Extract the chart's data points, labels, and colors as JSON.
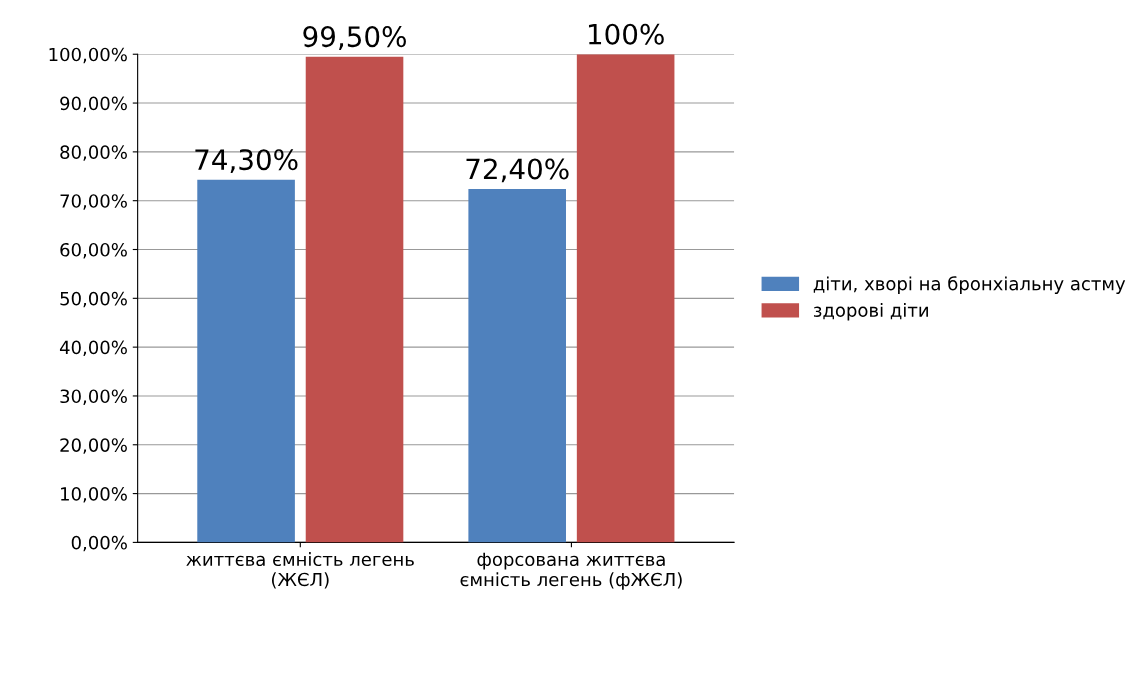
{
  "chart_data": {
    "type": "bar",
    "categories": [
      "життєва ємність легень (ЖЄЛ)",
      "форсована життєва ємність легень (фЖЄЛ)"
    ],
    "series": [
      {
        "name": "діти, хворі на бронхіальну астму",
        "color": "#4f81bd",
        "values": [
          74.3,
          72.4
        ],
        "value_labels": [
          "74,30%",
          "72,40%"
        ]
      },
      {
        "name": "здорові діти",
        "color": "#c0504d",
        "values": [
          99.5,
          100
        ],
        "value_labels": [
          "99,50%",
          "100%"
        ]
      }
    ],
    "ylim": [
      0,
      100
    ],
    "yticks": [
      {
        "value": 0,
        "label": "0,00%"
      },
      {
        "value": 10,
        "label": "10,00%"
      },
      {
        "value": 20,
        "label": "20,00%"
      },
      {
        "value": 30,
        "label": "30,00%"
      },
      {
        "value": 40,
        "label": "40,00%"
      },
      {
        "value": 50,
        "label": "50,00%"
      },
      {
        "value": 60,
        "label": "60,00%"
      },
      {
        "value": 70,
        "label": "70,00%"
      },
      {
        "value": 80,
        "label": "80,00%"
      },
      {
        "value": 90,
        "label": "90,00%"
      },
      {
        "value": 100,
        "label": "100,00%"
      }
    ],
    "grid": "y",
    "legend": "right"
  }
}
